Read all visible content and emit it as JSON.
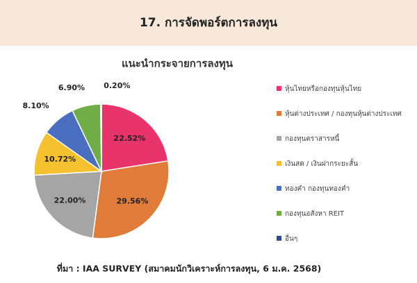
{
  "header": {
    "title": "17. การจัดพอร์ตการลงทุน"
  },
  "chart_data": {
    "type": "pie",
    "title": "แนะนำกระจายการลงทุน",
    "categories": [
      "หุ้นไทยหรือกองทุนหุ้นไทย",
      "หุ้นต่างประเทศ / กองทุนหุ้นต่างประเทศ",
      "กองทุนตราสารหนี้",
      "เงินสด / เงินฝากระยะสั้น",
      "ทองคำ กองทุนทองคำ",
      "กองทุนอสังหา REIT",
      "อื่นๆ"
    ],
    "values": [
      22.52,
      29.56,
      22.0,
      10.72,
      8.1,
      6.9,
      0.2
    ],
    "value_labels": [
      "22.52%",
      "29.56%",
      "22.00%",
      "10.72%",
      "8.10%",
      "6.90%",
      "0.20%"
    ],
    "colors": [
      "#e8336b",
      "#e07b39",
      "#a5a5a5",
      "#f5c12e",
      "#4a6fc1",
      "#70ad47",
      "#2e4a8f"
    ],
    "legend": "right"
  },
  "footer": {
    "source": "ที่มา : IAA SURVEY (สมาคมนักวิเคราะห์การลงทุน, 6 ม.ค. 2568)"
  }
}
